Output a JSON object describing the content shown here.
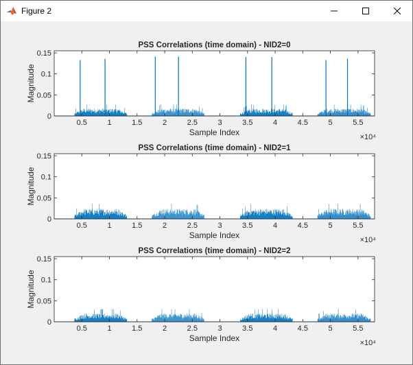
{
  "window": {
    "title": "Figure 2",
    "controls": {
      "minimize": "minimize",
      "maximize": "maximize",
      "close": "close"
    }
  },
  "chart_data": [
    {
      "type": "line",
      "title": "PSS Correlations (time domain) - NID2=0",
      "xlabel": "Sample Index",
      "ylabel": "Magnitude",
      "xlim": [
        0,
        58000
      ],
      "ylim": [
        0,
        0.155
      ],
      "x_ticks": [
        5000,
        10000,
        15000,
        20000,
        25000,
        30000,
        35000,
        40000,
        45000,
        50000,
        55000
      ],
      "x_tick_labels": [
        "0.5",
        "1",
        "1.5",
        "2",
        "2.5",
        "3",
        "3.5",
        "4",
        "4.5",
        "5",
        "5.5"
      ],
      "x_exponent_label": "×10⁴",
      "y_ticks": [
        0,
        0.05,
        0.1,
        0.15
      ],
      "y_tick_labels": [
        "0",
        "0.05",
        "0.1",
        "0.15"
      ],
      "grid": false,
      "series_color": "#0072bd",
      "noise_segments": [
        {
          "start": 3700,
          "end": 13200,
          "level": 0.018
        },
        {
          "start": 17700,
          "end": 27200,
          "level": 0.018
        },
        {
          "start": 33700,
          "end": 43200,
          "level": 0.018
        },
        {
          "start": 47700,
          "end": 57300,
          "level": 0.018
        }
      ],
      "peaks": [
        {
          "x": 4700,
          "y": 0.133
        },
        {
          "x": 9200,
          "y": 0.136
        },
        {
          "x": 18300,
          "y": 0.141
        },
        {
          "x": 22500,
          "y": 0.141
        },
        {
          "x": 34700,
          "y": 0.14
        },
        {
          "x": 39400,
          "y": 0.14
        },
        {
          "x": 49200,
          "y": 0.133
        },
        {
          "x": 53100,
          "y": 0.136
        }
      ]
    },
    {
      "type": "line",
      "title": "PSS Correlations (time domain) - NID2=1",
      "xlabel": "Sample Index",
      "ylabel": "Magnitude",
      "xlim": [
        0,
        58000
      ],
      "ylim": [
        0,
        0.155
      ],
      "x_ticks": [
        5000,
        10000,
        15000,
        20000,
        25000,
        30000,
        35000,
        40000,
        45000,
        50000,
        55000
      ],
      "x_tick_labels": [
        "0.5",
        "1",
        "1.5",
        "2",
        "2.5",
        "3",
        "3.5",
        "4",
        "4.5",
        "5",
        "5.5"
      ],
      "x_exponent_label": "×10⁴",
      "y_ticks": [
        0,
        0.05,
        0.1,
        0.15
      ],
      "y_tick_labels": [
        "0",
        "0.05",
        "0.1",
        "0.15"
      ],
      "grid": false,
      "series_color": "#0072bd",
      "noise_segments": [
        {
          "start": 3700,
          "end": 13200,
          "level": 0.024
        },
        {
          "start": 17700,
          "end": 27200,
          "level": 0.024
        },
        {
          "start": 33700,
          "end": 43200,
          "level": 0.024
        },
        {
          "start": 47700,
          "end": 57300,
          "level": 0.024
        }
      ],
      "peaks": []
    },
    {
      "type": "line",
      "title": "PSS Correlations (time domain) - NID2=2",
      "xlabel": "Sample Index",
      "ylabel": "Magnitude",
      "xlim": [
        0,
        58000
      ],
      "ylim": [
        0,
        0.155
      ],
      "x_ticks": [
        5000,
        10000,
        15000,
        20000,
        25000,
        30000,
        35000,
        40000,
        45000,
        50000,
        55000
      ],
      "x_tick_labels": [
        "0.5",
        "1",
        "1.5",
        "2",
        "2.5",
        "3",
        "3.5",
        "4",
        "4.5",
        "5",
        "5.5"
      ],
      "x_exponent_label": "×10⁴",
      "y_ticks": [
        0,
        0.05,
        0.1,
        0.15
      ],
      "y_tick_labels": [
        "0",
        "0.05",
        "0.1",
        "0.15"
      ],
      "grid": false,
      "series_color": "#0072bd",
      "noise_segments": [
        {
          "start": 3700,
          "end": 13200,
          "level": 0.02
        },
        {
          "start": 17700,
          "end": 27200,
          "level": 0.02
        },
        {
          "start": 33700,
          "end": 43200,
          "level": 0.02
        },
        {
          "start": 47700,
          "end": 57300,
          "level": 0.02
        }
      ],
      "peaks": []
    }
  ]
}
